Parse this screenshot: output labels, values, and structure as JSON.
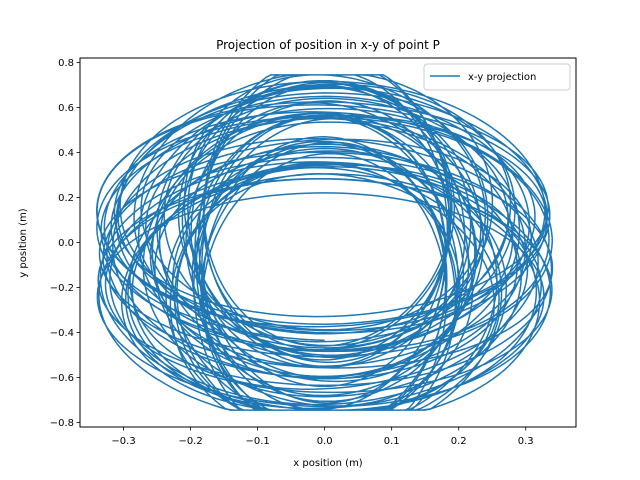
{
  "chart_data": {
    "type": "line",
    "title": "Projection of position in x-y of point P",
    "xlabel": "x position (m)",
    "ylabel": "y position (m)",
    "xlim": [
      -0.365,
      0.375
    ],
    "ylim": [
      -0.82,
      0.82
    ],
    "xticks": [
      -0.3,
      -0.2,
      -0.1,
      0.0,
      0.1,
      0.2,
      0.3
    ],
    "yticks": [
      -0.8,
      -0.6,
      -0.4,
      -0.2,
      0.0,
      0.2,
      0.4,
      0.6,
      0.8
    ],
    "xtick_labels": [
      "−0.3",
      "−0.2",
      "−0.1",
      "0.0",
      "0.1",
      "0.2",
      "0.3"
    ],
    "ytick_labels": [
      "−0.8",
      "−0.6",
      "−0.4",
      "−0.2",
      "0.0",
      "0.2",
      "0.4",
      "0.6",
      "0.8"
    ],
    "grid": false,
    "legend_position": "top-right",
    "series": [
      {
        "name": "x-y projection",
        "color": "#1f77b4",
        "trajectory": {
          "description_free_params": true,
          "x_range": [
            -0.34,
            0.34
          ],
          "y_range": [
            -0.75,
            0.75
          ],
          "inner_hole_x_range": [
            -0.16,
            0.16
          ],
          "inner_hole_y_range": [
            -0.16,
            0.72
          ],
          "cycles": 60
        }
      }
    ]
  }
}
